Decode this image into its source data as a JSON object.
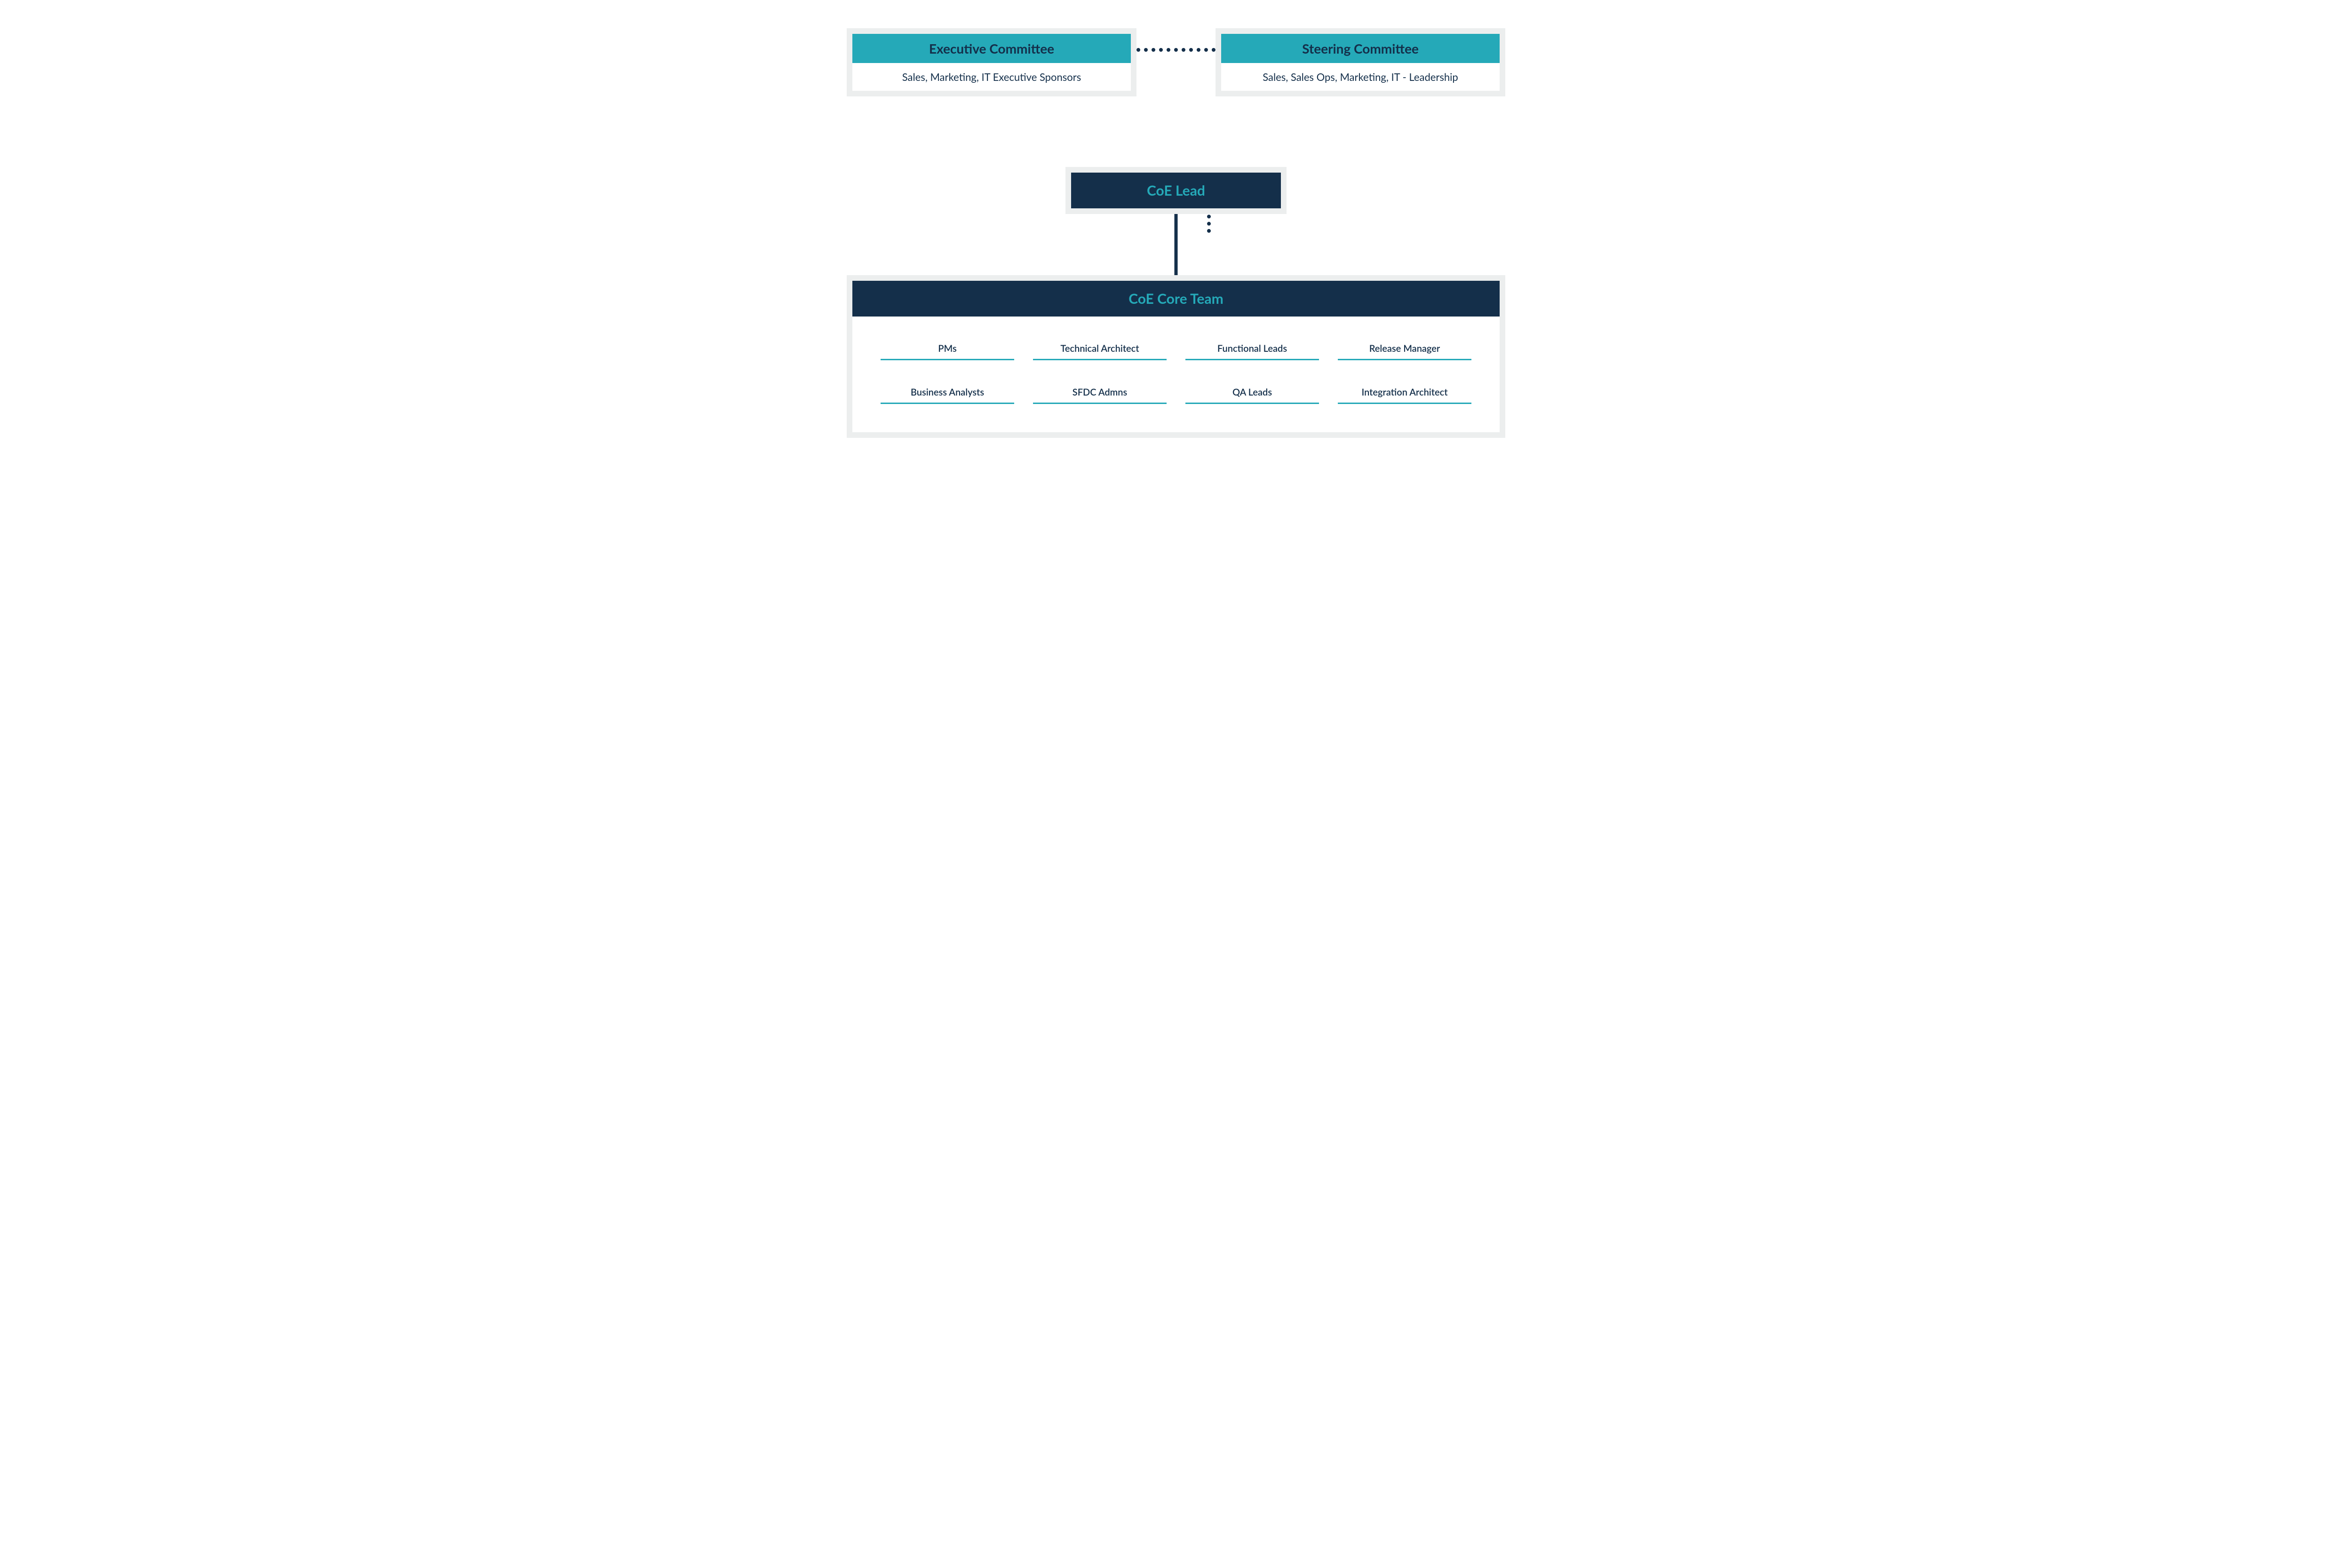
{
  "type": "flowchart",
  "colors": {
    "teal_bg": "#25a9b8",
    "teal_text": "#25a9b8",
    "teal_underline": "#25a9b8",
    "navy_bg": "#142f4a",
    "navy_text": "#142f4a",
    "card_border": "#eceeee",
    "page_bg": "#ffffff",
    "card_bg": "#ffffff"
  },
  "typography": {
    "title_fontsize": 28,
    "subtitle_fontsize": 22,
    "role_fontsize": 20,
    "title_weight": 700,
    "role_weight": 600,
    "font_family": "Segoe UI, Lato, Arial, sans-serif"
  },
  "layout": {
    "card_border_width": 12,
    "role_underline_width": 3,
    "dotted_connector_width": 8,
    "solid_connector_width": 7,
    "roles_columns": 4,
    "roles_rows": 2
  },
  "nodes": {
    "executive_committee": {
      "title": "Executive Committee",
      "subtitle": "Sales, Marketing, IT Executive Sponsors",
      "header_style": "teal"
    },
    "steering_committee": {
      "title": "Steering Committee",
      "subtitle": "Sales, Sales Ops, Marketing, IT - Leadership",
      "header_style": "teal"
    },
    "coe_lead": {
      "title": "CoE Lead",
      "header_style": "navy"
    },
    "coe_core_team": {
      "title": "CoE Core Team",
      "header_style": "navy",
      "roles": [
        "PMs",
        "Technical Architect",
        "Functional Leads",
        "Release Manager",
        "Business Analysts",
        "SFDC Admns",
        "QA Leads",
        "Integration Architect"
      ]
    }
  },
  "edges": [
    {
      "from": "executive_committee",
      "to": "steering_committee",
      "style": "dotted",
      "orientation": "horizontal"
    },
    {
      "from": "steering_committee",
      "to": "coe_lead",
      "style": "dotted",
      "orientation": "vertical"
    },
    {
      "from": "coe_lead",
      "to": "coe_core_team",
      "style": "solid",
      "orientation": "vertical"
    }
  ]
}
